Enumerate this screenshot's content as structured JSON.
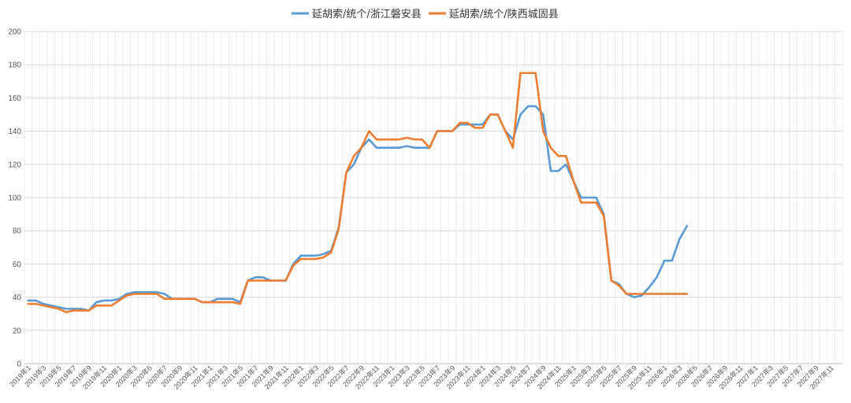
{
  "chart_data": {
    "type": "line",
    "title": "",
    "xlabel": "",
    "ylabel": "",
    "ylim": [
      0,
      200
    ],
    "y_ticks": [
      0,
      20,
      40,
      60,
      80,
      100,
      120,
      140,
      160,
      180,
      200
    ],
    "x_start": "2019-01",
    "x_end": "2027-12",
    "x_tick_labels": [
      "2019年1",
      "2019年3",
      "2019年5",
      "2019年7",
      "2019年9",
      "2019年11",
      "2020年1",
      "2020年3",
      "2020年5",
      "2020年7",
      "2020年9",
      "2020年11",
      "2021年1",
      "2021年3",
      "2021年5",
      "2021年7",
      "2021年9",
      "2021年11",
      "2022年1",
      "2022年3",
      "2022年5",
      "2022年7",
      "2022年9",
      "2022年11",
      "2023年1",
      "2023年3",
      "2023年5",
      "2023年7",
      "2023年9",
      "2023年11",
      "2024年1",
      "2024年3",
      "2024年5",
      "2024年7",
      "2024年9",
      "2024年11",
      "2025年1",
      "2025年3",
      "2025年5",
      "2025年7",
      "2025年9",
      "2025年11",
      "2026年1",
      "2026年3",
      "2026年5",
      "2026年7",
      "2026年9",
      "2026年11",
      "2027年1",
      "2027年3",
      "2027年5",
      "2027年7",
      "2027年9",
      "2027年11"
    ],
    "grid": true,
    "legend_position": "top",
    "series": [
      {
        "name": "延胡索/统个/浙江磐安县",
        "color": "#5b9bd5",
        "x": [
          "2019-01",
          "2019-02",
          "2019-03",
          "2019-04",
          "2019-05",
          "2019-06",
          "2019-07",
          "2019-08",
          "2019-09",
          "2019-10",
          "2019-11",
          "2019-12",
          "2020-01",
          "2020-02",
          "2020-03",
          "2020-04",
          "2020-05",
          "2020-06",
          "2020-07",
          "2020-08",
          "2020-09",
          "2020-10",
          "2020-11",
          "2020-12",
          "2021-01",
          "2021-02",
          "2021-03",
          "2021-04",
          "2021-05",
          "2021-06",
          "2021-07",
          "2021-08",
          "2021-09",
          "2021-10",
          "2021-11",
          "2021-12",
          "2022-01",
          "2022-02",
          "2022-03",
          "2022-04",
          "2022-05",
          "2022-06",
          "2022-07",
          "2022-08",
          "2022-09",
          "2022-10",
          "2022-11",
          "2022-12",
          "2023-01",
          "2023-02",
          "2023-03",
          "2023-04",
          "2023-05",
          "2023-06",
          "2023-07",
          "2023-08",
          "2023-09",
          "2023-10",
          "2023-11",
          "2023-12",
          "2024-01",
          "2024-02",
          "2024-03",
          "2024-04",
          "2024-05",
          "2024-06",
          "2024-07",
          "2024-08",
          "2024-09",
          "2024-10",
          "2024-11",
          "2024-12",
          "2025-01",
          "2025-02",
          "2025-03",
          "2025-04",
          "2025-05",
          "2025-06",
          "2025-07",
          "2025-08",
          "2025-09",
          "2025-10",
          "2025-11",
          "2025-12",
          "2026-01",
          "2026-02",
          "2026-03",
          "2026-04"
        ],
        "values": [
          38,
          38,
          36,
          35,
          34,
          33,
          33,
          33,
          32,
          37,
          38,
          38,
          39,
          42,
          43,
          43,
          43,
          43,
          42,
          39,
          39,
          39,
          39,
          37,
          37,
          39,
          39,
          39,
          37,
          50,
          52,
          52,
          50,
          50,
          50,
          60,
          65,
          65,
          65,
          66,
          68,
          82,
          115,
          120,
          130,
          135,
          130,
          130,
          130,
          130,
          131,
          130,
          130,
          130,
          140,
          140,
          140,
          144,
          144,
          144,
          144,
          150,
          150,
          140,
          135,
          150,
          155,
          155,
          150,
          116,
          116,
          120,
          110,
          100,
          100,
          100,
          90,
          50,
          48,
          42,
          40,
          41,
          46,
          52,
          62,
          62,
          75,
          83
        ]
      },
      {
        "name": "延胡索/统个/陕西城固县",
        "color": "#ed7d31",
        "x": [
          "2019-01",
          "2019-02",
          "2019-03",
          "2019-04",
          "2019-05",
          "2019-06",
          "2019-07",
          "2019-08",
          "2019-09",
          "2019-10",
          "2019-11",
          "2019-12",
          "2020-01",
          "2020-02",
          "2020-03",
          "2020-04",
          "2020-05",
          "2020-06",
          "2020-07",
          "2020-08",
          "2020-09",
          "2020-10",
          "2020-11",
          "2020-12",
          "2021-01",
          "2021-02",
          "2021-03",
          "2021-04",
          "2021-05",
          "2021-06",
          "2021-07",
          "2021-08",
          "2021-09",
          "2021-10",
          "2021-11",
          "2021-12",
          "2022-01",
          "2022-02",
          "2022-03",
          "2022-04",
          "2022-05",
          "2022-06",
          "2022-07",
          "2022-08",
          "2022-09",
          "2022-10",
          "2022-11",
          "2022-12",
          "2023-01",
          "2023-02",
          "2023-03",
          "2023-04",
          "2023-05",
          "2023-06",
          "2023-07",
          "2023-08",
          "2023-09",
          "2023-10",
          "2023-11",
          "2023-12",
          "2024-01",
          "2024-02",
          "2024-03",
          "2024-04",
          "2024-05",
          "2024-06",
          "2024-07",
          "2024-08",
          "2024-09",
          "2024-10",
          "2024-11",
          "2024-12",
          "2025-01",
          "2025-02",
          "2025-03",
          "2025-04",
          "2025-05",
          "2025-06",
          "2025-07",
          "2025-08",
          "2025-09",
          "2025-10",
          "2025-11",
          "2025-12",
          "2026-01",
          "2026-02",
          "2026-03",
          "2026-04"
        ],
        "values": [
          36,
          36,
          35,
          34,
          33,
          31,
          32,
          32,
          32,
          35,
          35,
          35,
          38,
          41,
          42,
          42,
          42,
          42,
          39,
          39,
          39,
          39,
          39,
          37,
          37,
          37,
          37,
          37,
          36,
          50,
          50,
          50,
          50,
          50,
          50,
          59,
          63,
          63,
          63,
          64,
          67,
          81,
          115,
          125,
          130,
          140,
          135,
          135,
          135,
          135,
          136,
          135,
          135,
          130,
          140,
          140,
          140,
          145,
          145,
          142,
          142,
          150,
          150,
          140,
          130,
          175,
          175,
          175,
          140,
          130,
          125,
          125,
          110,
          97,
          97,
          97,
          89,
          50,
          47,
          42,
          42,
          42,
          42,
          42,
          42,
          42,
          42,
          42
        ]
      }
    ]
  }
}
